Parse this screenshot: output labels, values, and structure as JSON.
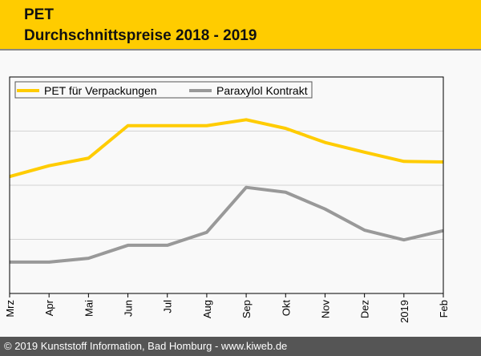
{
  "header": {
    "title": "PET",
    "subtitle": "Durchschnittspreise 2018 - 2019",
    "color": "#ffcc00"
  },
  "footer": {
    "text": "© 2019 Kunststoff Information, Bad Homburg - www.kiweb.de"
  },
  "chart_data": {
    "type": "line",
    "categories": [
      "Mrz",
      "Apr",
      "Mai",
      "Jun",
      "Jul",
      "Aug",
      "Sep",
      "Okt",
      "Nov",
      "Dez",
      "2019",
      "Feb"
    ],
    "ylim": [
      0,
      4
    ],
    "grid": true,
    "yticks_labeled": false,
    "legend": "top-left",
    "series": [
      {
        "name": "PET für Verpackungen",
        "color": "#ffcc00",
        "values": [
          2.16,
          2.36,
          2.5,
          3.1,
          3.1,
          3.1,
          3.21,
          3.05,
          2.79,
          2.61,
          2.44,
          2.43
        ]
      },
      {
        "name": "Paraxylol Kontrakt",
        "color": "#999999",
        "values": [
          0.58,
          0.58,
          0.65,
          0.89,
          0.89,
          1.13,
          1.96,
          1.87,
          1.56,
          1.17,
          0.99,
          1.16
        ]
      }
    ]
  }
}
